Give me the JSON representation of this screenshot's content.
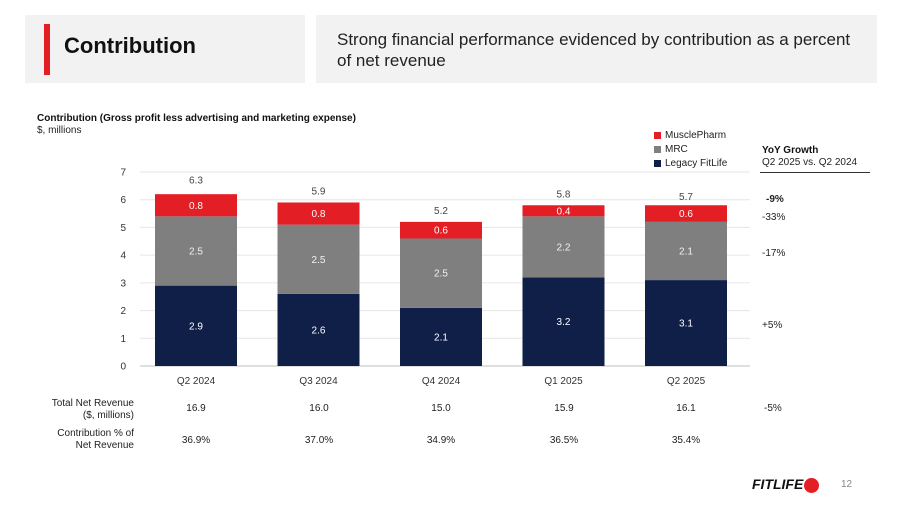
{
  "header": {
    "title": "Contribution",
    "subtitle": "Strong financial performance evidenced by contribution as a percent of net revenue"
  },
  "chart": {
    "title": "Contribution (Gross profit less advertising and marketing expense)",
    "unit": "$, millions"
  },
  "legend": [
    {
      "label": "MusclePharm",
      "color": "#e31e24"
    },
    {
      "label": "MRC",
      "color": "#7f7f7f"
    },
    {
      "label": "Legacy FitLife",
      "color": "#0f1f48"
    }
  ],
  "yoy": {
    "heading": "YoY Growth",
    "subheading": "Q2 2025 vs. Q2 2024",
    "total": "-9%",
    "musclepharm": "-33%",
    "mrc": "-17%",
    "legacy": "+5%",
    "net_revenue": "-5%"
  },
  "chart_data": {
    "type": "bar",
    "stacked": true,
    "categories": [
      "Q2 2024",
      "Q3 2024",
      "Q4 2024",
      "Q1 2025",
      "Q2 2025"
    ],
    "series": [
      {
        "name": "Legacy FitLife",
        "color": "#0f1f48",
        "values": [
          2.9,
          2.6,
          2.1,
          3.2,
          3.1
        ],
        "labels": [
          "2.9",
          "2.6",
          "2.1",
          "3.2",
          "3.1"
        ]
      },
      {
        "name": "MRC",
        "color": "#7f7f7f",
        "values": [
          2.5,
          2.5,
          2.5,
          2.2,
          2.1
        ],
        "labels": [
          "2.5",
          "2.5",
          "2.5",
          "2.2",
          "2.1"
        ]
      },
      {
        "name": "MusclePharm",
        "color": "#e31e24",
        "values": [
          0.8,
          0.8,
          0.6,
          0.4,
          0.6
        ],
        "labels": [
          "0.8",
          "0.8",
          "0.6",
          "0.4",
          "0.6"
        ]
      }
    ],
    "totals": [
      6.3,
      5.9,
      5.2,
      5.8,
      5.7
    ],
    "total_labels": [
      "6.3",
      "5.9",
      "5.2",
      "5.8",
      "5.7"
    ],
    "yticks": [
      "0",
      "1",
      "2",
      "3",
      "4",
      "5",
      "6",
      "7"
    ],
    "ylim": [
      0,
      7
    ],
    "title": "Contribution (Gross profit less advertising and marketing expense)",
    "ylabel": "$, millions",
    "grid": true
  },
  "table": {
    "rows": [
      {
        "label_line1": "Total Net Revenue",
        "label_line2": "($, millions)",
        "values": [
          "16.9",
          "16.0",
          "15.0",
          "15.9",
          "16.1"
        ]
      },
      {
        "label_line1": "Contribution % of",
        "label_line2": "Net Revenue",
        "values": [
          "36.9%",
          "37.0%",
          "34.9%",
          "36.5%",
          "35.4%"
        ]
      }
    ]
  },
  "footer": {
    "logo": "FITLIFE",
    "page": "12"
  }
}
